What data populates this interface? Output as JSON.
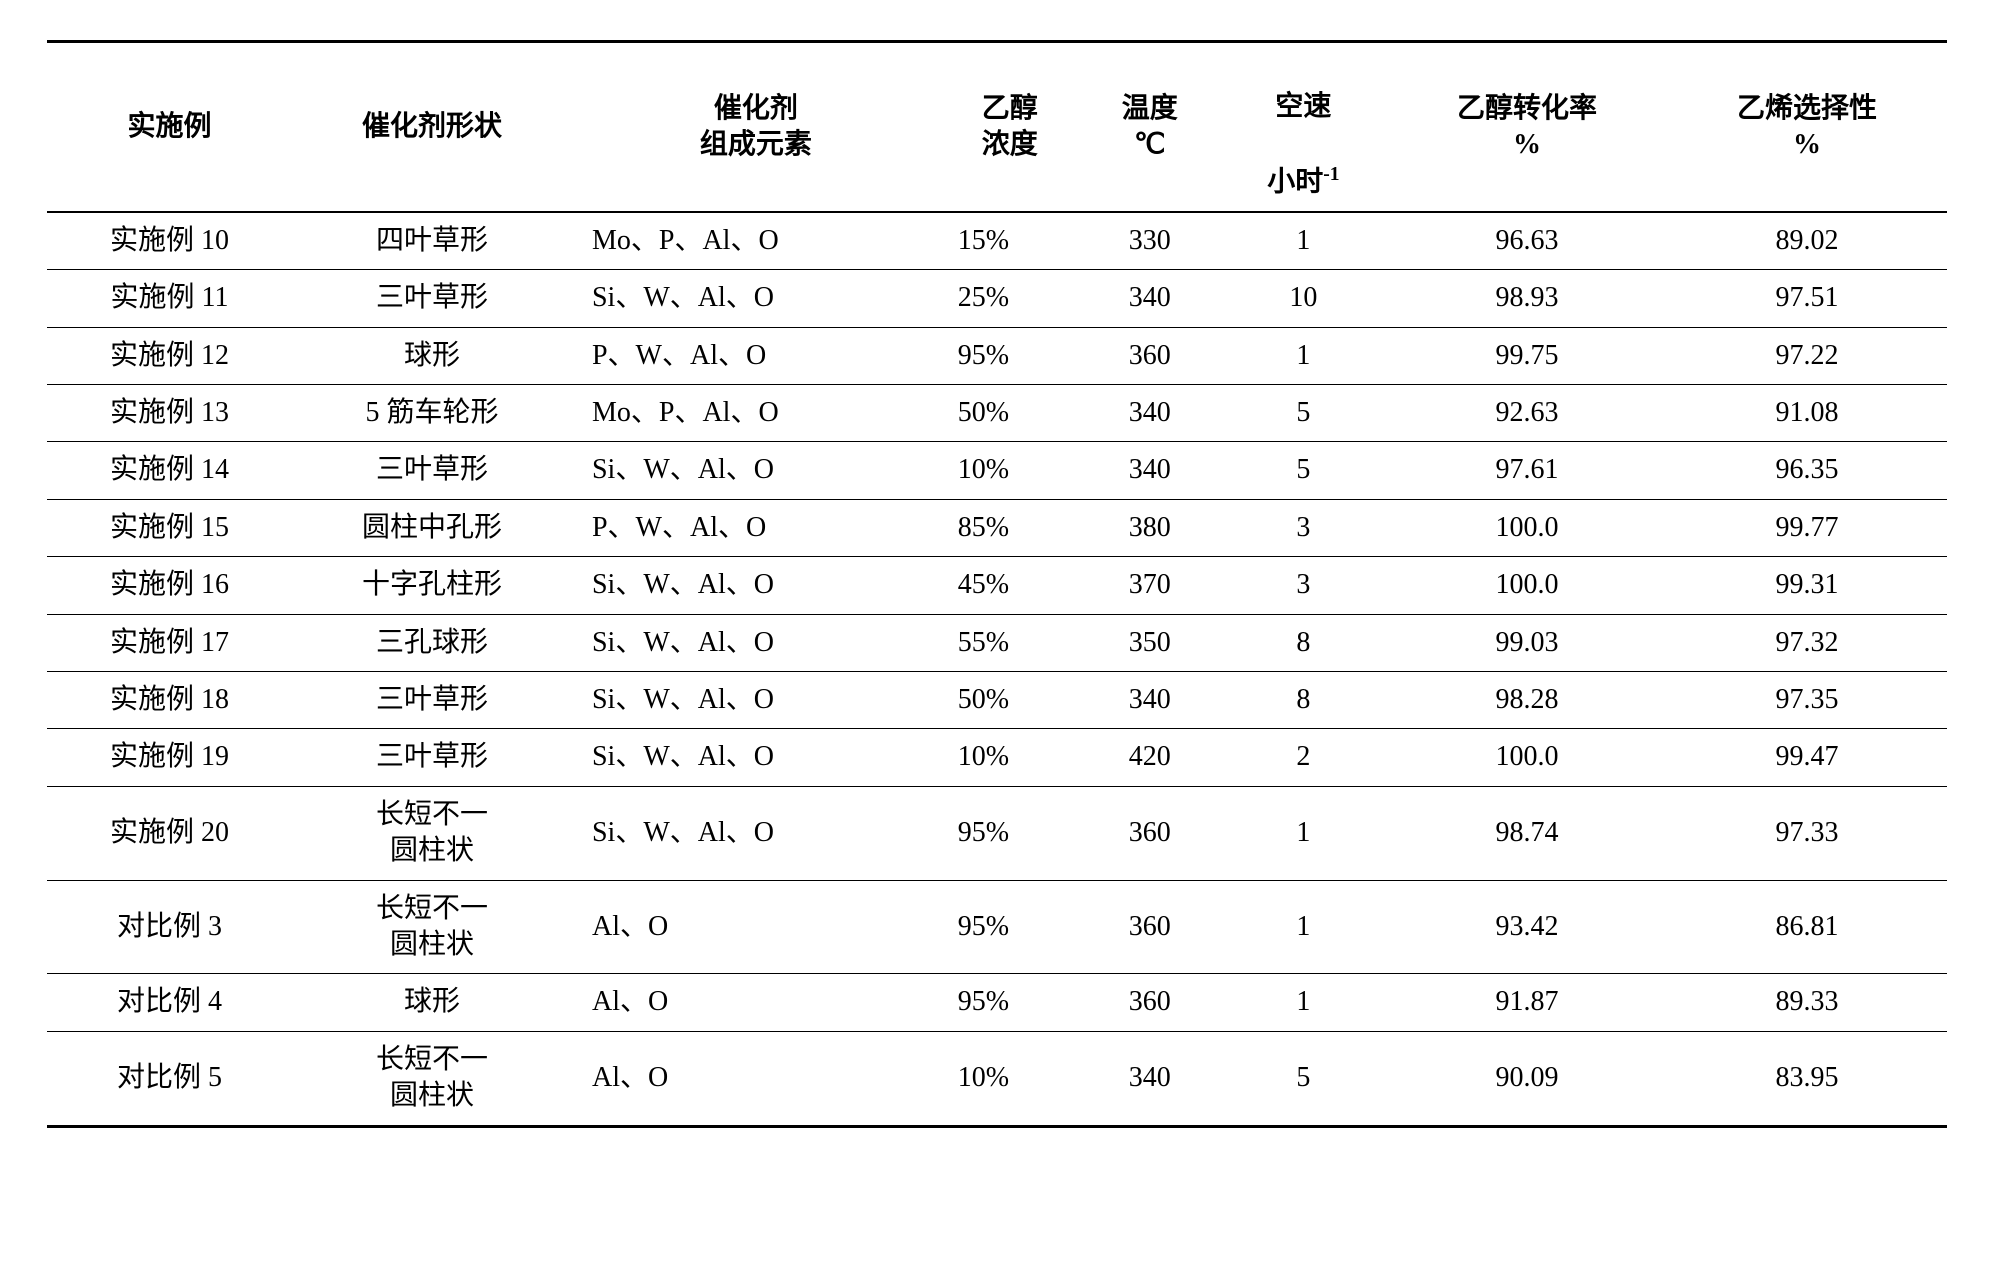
{
  "table": {
    "type": "table",
    "background_color": "#ffffff",
    "border_color": "#000000",
    "top_bottom_border_width": 3,
    "row_border_width": 1.5,
    "header_bottom_border_width": 2,
    "font_family": "SimSun / Times New Roman",
    "font_size_pt": 21,
    "text_color": "#000000",
    "columns": [
      {
        "key": "example",
        "label": "实施例",
        "align": "center",
        "width_pct": 10
      },
      {
        "key": "shape",
        "label": "催化剂形状",
        "align": "center",
        "width_pct": 12
      },
      {
        "key": "composition",
        "label": "催化剂\n组成元素",
        "align": "left",
        "width_pct": 18
      },
      {
        "key": "ethanol",
        "label": "乙醇\n浓度",
        "align": "left",
        "width_pct": 8
      },
      {
        "key": "temp",
        "label": "温度\n℃",
        "align": "center",
        "width_pct": 8
      },
      {
        "key": "sv",
        "label": "空速\n小时⁻¹",
        "align": "center",
        "width_pct": 8
      },
      {
        "key": "conv",
        "label": "乙醇转化率\n%",
        "align": "center",
        "width_pct": 16
      },
      {
        "key": "sel",
        "label": "乙烯选择性\n%",
        "align": "center",
        "width_pct": 16
      }
    ],
    "header_sv_line1": "空速",
    "header_sv_line2_prefix": "小时",
    "header_sv_line2_sup": "-1",
    "rows": [
      {
        "example": "实施例 10",
        "shape": "四叶草形",
        "composition": "Mo、P、Al、O",
        "ethanol": "15%",
        "temp": "330",
        "sv": "1",
        "conv": "96.63",
        "sel": "89.02"
      },
      {
        "example": "实施例 11",
        "shape": "三叶草形",
        "composition": "Si、W、Al、O",
        "ethanol": "25%",
        "temp": "340",
        "sv": "10",
        "conv": "98.93",
        "sel": "97.51"
      },
      {
        "example": "实施例 12",
        "shape": "球形",
        "composition": "P、W、Al、O",
        "ethanol": "95%",
        "temp": "360",
        "sv": "1",
        "conv": "99.75",
        "sel": "97.22"
      },
      {
        "example": "实施例 13",
        "shape": "5 筋车轮形",
        "composition": "Mo、P、Al、O",
        "ethanol": "50%",
        "temp": "340",
        "sv": "5",
        "conv": "92.63",
        "sel": "91.08"
      },
      {
        "example": "实施例 14",
        "shape": "三叶草形",
        "composition": "Si、W、Al、O",
        "ethanol": "10%",
        "temp": "340",
        "sv": "5",
        "conv": "97.61",
        "sel": "96.35"
      },
      {
        "example": "实施例 15",
        "shape": "圆柱中孔形",
        "composition": "P、W、Al、O",
        "ethanol": "85%",
        "temp": "380",
        "sv": "3",
        "conv": "100.0",
        "sel": "99.77"
      },
      {
        "example": "实施例 16",
        "shape": "十字孔柱形",
        "composition": "Si、W、Al、O",
        "ethanol": "45%",
        "temp": "370",
        "sv": "3",
        "conv": "100.0",
        "sel": "99.31"
      },
      {
        "example": "实施例 17",
        "shape": "三孔球形",
        "composition": "Si、W、Al、O",
        "ethanol": "55%",
        "temp": "350",
        "sv": "8",
        "conv": "99.03",
        "sel": "97.32"
      },
      {
        "example": "实施例 18",
        "shape": "三叶草形",
        "composition": "Si、W、Al、O",
        "ethanol": "50%",
        "temp": "340",
        "sv": "8",
        "conv": "98.28",
        "sel": "97.35"
      },
      {
        "example": "实施例 19",
        "shape": "三叶草形",
        "composition": "Si、W、Al、O",
        "ethanol": "10%",
        "temp": "420",
        "sv": "2",
        "conv": "100.0",
        "sel": "99.47"
      },
      {
        "example": "实施例 20",
        "shape": "长短不一\n圆柱状",
        "composition": "Si、W、Al、O",
        "ethanol": "95%",
        "temp": "360",
        "sv": "1",
        "conv": "98.74",
        "sel": "97.33"
      },
      {
        "example": "对比例 3",
        "shape": "长短不一\n圆柱状",
        "composition": "Al、O",
        "ethanol": "95%",
        "temp": "360",
        "sv": "1",
        "conv": "93.42",
        "sel": "86.81"
      },
      {
        "example": "对比例 4",
        "shape": "球形",
        "composition": "Al、O",
        "ethanol": "95%",
        "temp": "360",
        "sv": "1",
        "conv": "91.87",
        "sel": "89.33"
      },
      {
        "example": "对比例 5",
        "shape": "长短不一\n圆柱状",
        "composition": "Al、O",
        "ethanol": "10%",
        "temp": "340",
        "sv": "5",
        "conv": "90.09",
        "sel": "83.95"
      }
    ]
  }
}
